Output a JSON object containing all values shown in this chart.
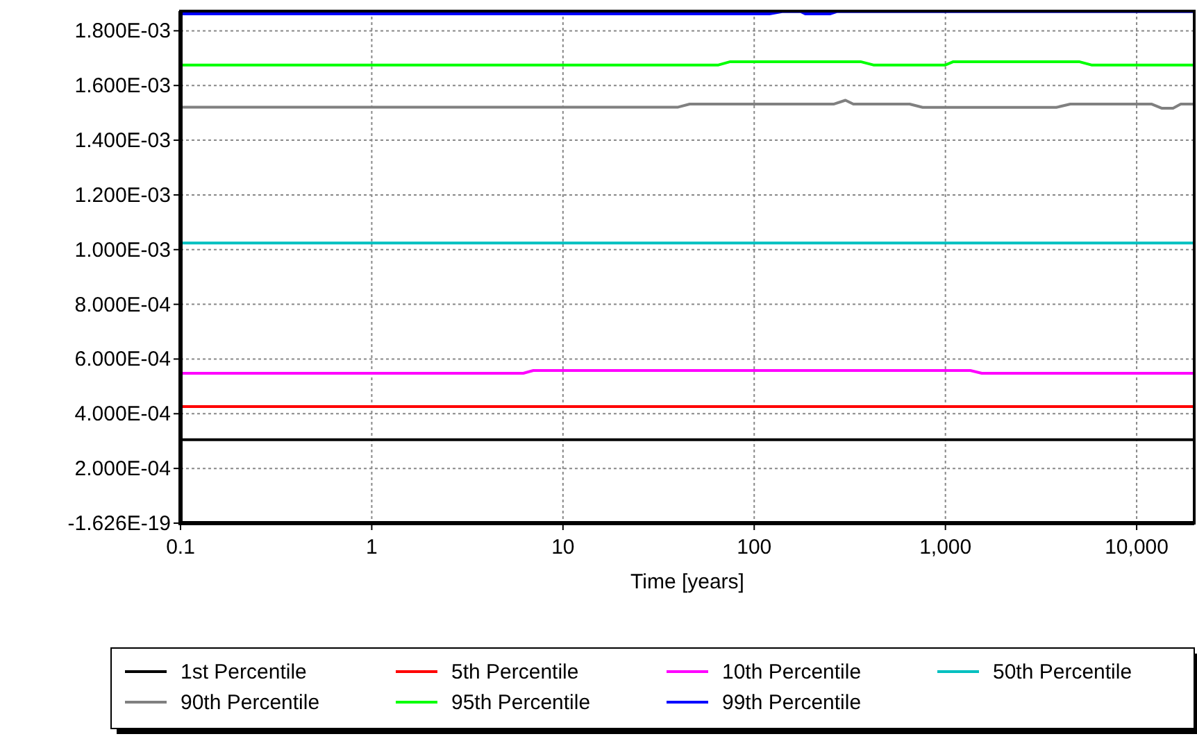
{
  "chart_data": {
    "type": "line",
    "xlabel": "Time [years]",
    "log": "x",
    "grid": true,
    "legend": "bottom",
    "line_style": "solid",
    "marker": "none",
    "xlim": [
      0.1,
      20000
    ],
    "ylim": [
      -1.626e-19,
      0.001872
    ],
    "xticks": [
      0.1,
      1,
      10,
      100,
      {
        "value": 1000,
        "label": "1,000"
      },
      {
        "value": 10000,
        "label": "10,000"
      }
    ],
    "yticks": [
      {
        "value": -1.626e-19,
        "label": "-1.626E-19"
      },
      {
        "value": 0.0002,
        "label": "2.000E-04"
      },
      {
        "value": 0.0004,
        "label": "4.000E-04"
      },
      {
        "value": 0.0006,
        "label": "6.000E-04"
      },
      {
        "value": 0.0008,
        "label": "8.000E-04"
      },
      {
        "value": 0.001,
        "label": "1.000E-03"
      },
      {
        "value": 0.0012,
        "label": "1.200E-03"
      },
      {
        "value": 0.0014,
        "label": "1.400E-03"
      },
      {
        "value": 0.0016,
        "label": "1.600E-03"
      },
      {
        "value": 0.0018,
        "label": "1.800E-03"
      }
    ],
    "series": [
      {
        "name": "1st Percentile",
        "color": "#000000",
        "x": [
          0.1,
          20000
        ],
        "values": [
          0.000305,
          0.000305
        ]
      },
      {
        "name": "5th Percentile",
        "color": "#ff0000",
        "x": [
          0.1,
          20000
        ],
        "values": [
          0.000426,
          0.000426
        ]
      },
      {
        "name": "10th Percentile",
        "color": "#ff00ff",
        "x": [
          0.1,
          6.2,
          7,
          1350,
          1550,
          20000
        ],
        "values": [
          0.000548,
          0.000548,
          0.000558,
          0.000558,
          0.000548,
          0.000548
        ]
      },
      {
        "name": "50th Percentile",
        "color": "#00c0c0",
        "x": [
          0.1,
          20000
        ],
        "values": [
          0.001024,
          0.001024
        ]
      },
      {
        "name": "90th Percentile",
        "color": "#808080",
        "x": [
          0.1,
          40,
          46,
          260,
          300,
          330,
          650,
          760,
          3800,
          4500,
          12000,
          13500,
          15500,
          17000,
          20000
        ],
        "values": [
          0.001521,
          0.001521,
          0.001532,
          0.001532,
          0.001546,
          0.001532,
          0.001532,
          0.00152,
          0.00152,
          0.001532,
          0.001532,
          0.001517,
          0.001517,
          0.001532,
          0.001532
        ]
      },
      {
        "name": "95th Percentile",
        "color": "#00ff00",
        "x": [
          0.1,
          65,
          75,
          360,
          420,
          1000,
          1100,
          5000,
          5800,
          20000
        ],
        "values": [
          0.001675,
          0.001675,
          0.001687,
          0.001687,
          0.001675,
          0.001675,
          0.001687,
          0.001687,
          0.001675,
          0.001675
        ]
      },
      {
        "name": "99th Percentile",
        "color": "#0000ff",
        "x": [
          0.1,
          120,
          140,
          175,
          185,
          250,
          270,
          20000
        ],
        "values": [
          0.001862,
          0.001862,
          0.00187,
          0.00187,
          0.001862,
          0.001862,
          0.00187,
          0.00187
        ]
      }
    ]
  }
}
